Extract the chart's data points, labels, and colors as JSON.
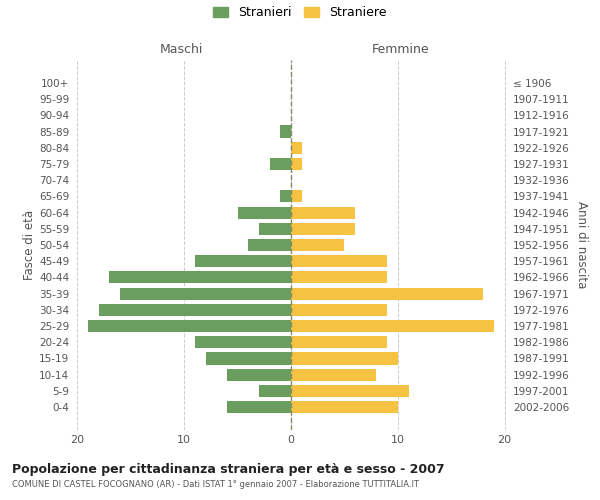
{
  "age_groups": [
    "100+",
    "95-99",
    "90-94",
    "85-89",
    "80-84",
    "75-79",
    "70-74",
    "65-69",
    "60-64",
    "55-59",
    "50-54",
    "45-49",
    "40-44",
    "35-39",
    "30-34",
    "25-29",
    "20-24",
    "15-19",
    "10-14",
    "5-9",
    "0-4"
  ],
  "birth_years": [
    "≤ 1906",
    "1907-1911",
    "1912-1916",
    "1917-1921",
    "1922-1926",
    "1927-1931",
    "1932-1936",
    "1937-1941",
    "1942-1946",
    "1947-1951",
    "1952-1956",
    "1957-1961",
    "1962-1966",
    "1967-1971",
    "1972-1976",
    "1977-1981",
    "1982-1986",
    "1987-1991",
    "1992-1996",
    "1997-2001",
    "2002-2006"
  ],
  "males": [
    0,
    0,
    0,
    1,
    0,
    2,
    0,
    1,
    5,
    3,
    4,
    9,
    17,
    16,
    18,
    19,
    9,
    8,
    6,
    3,
    6
  ],
  "females": [
    0,
    0,
    0,
    0,
    1,
    1,
    0,
    1,
    6,
    6,
    5,
    9,
    9,
    18,
    9,
    19,
    9,
    10,
    8,
    11,
    10
  ],
  "male_color": "#6a9e5e",
  "female_color": "#f5c242",
  "background_color": "#ffffff",
  "grid_color": "#cccccc",
  "title": "Popolazione per cittadinanza straniera per età e sesso - 2007",
  "subtitle": "COMUNE DI CASTEL FOCOGNANO (AR) - Dati ISTAT 1° gennaio 2007 - Elaborazione TUTTITALIA.IT",
  "ylabel_left": "Fasce di età",
  "ylabel_right": "Anni di nascita",
  "legend_males": "Stranieri",
  "legend_females": "Straniere",
  "xlim": 20,
  "maschi_label": "Maschi",
  "femmine_label": "Femmine"
}
